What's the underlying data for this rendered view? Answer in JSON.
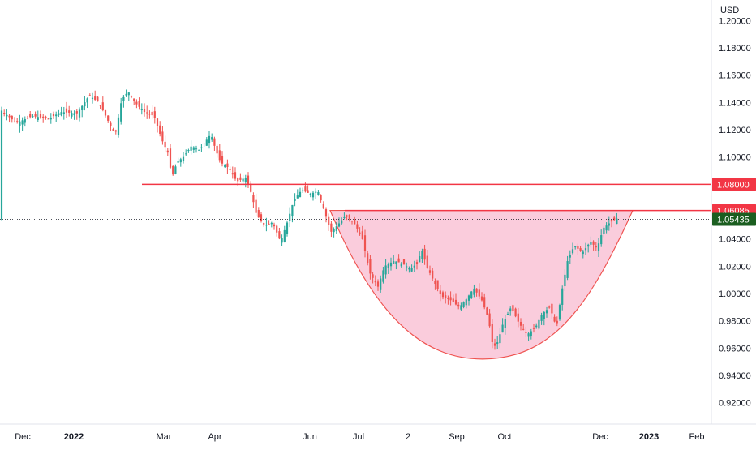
{
  "chart_data": {
    "type": "candlestick",
    "currency_label": "USD",
    "x_tick_labels": [
      "Dec",
      "2022",
      "Mar",
      "Apr",
      "Jun",
      "Jul",
      "2",
      "Sep",
      "Oct",
      "Dec",
      "2023",
      "Feb"
    ],
    "y_tick_labels": [
      "1.20000",
      "1.18000",
      "1.16000",
      "1.14000",
      "1.12000",
      "1.10000",
      "1.08000",
      "1.06000",
      "1.04000",
      "1.02000",
      "1.00000",
      "0.98000",
      "0.96000",
      "0.94000",
      "0.92000"
    ],
    "y_ticks": [
      1.2,
      1.18,
      1.16,
      1.14,
      1.12,
      1.1,
      1.08,
      1.06,
      1.04,
      1.02,
      1.0,
      0.98,
      0.96,
      0.94,
      0.92
    ],
    "ylim": [
      0.905,
      1.215
    ],
    "up_color": "#26a69a",
    "down_color": "#ef5350",
    "price_tags": [
      {
        "label": "1.08000",
        "value": 1.08,
        "color": "#f23645"
      },
      {
        "label": "1.06085",
        "value": 1.06085,
        "color": "#f23645"
      },
      {
        "label": "1.05435",
        "value": 1.05435,
        "color": "#1b5e20"
      }
    ],
    "resistance_lines": [
      {
        "value": 1.08,
        "color": "#f23645"
      },
      {
        "value": 1.06085,
        "color": "#f23645"
      }
    ],
    "current_price": 1.05435,
    "pattern": {
      "name": "cup",
      "rim": 1.06085,
      "bottom": 0.952,
      "fill": "#f8bbd0",
      "stroke": "#ef5350"
    },
    "price_path": [
      [
        0,
        1.135
      ],
      [
        20,
        1.125
      ],
      [
        40,
        1.13
      ],
      [
        60,
        1.128
      ],
      [
        75,
        1.133
      ],
      [
        95,
        1.132
      ],
      [
        110,
        1.145
      ],
      [
        122,
        1.14
      ],
      [
        132,
        1.128
      ],
      [
        142,
        1.116
      ],
      [
        150,
        1.142
      ],
      [
        158,
        1.148
      ],
      [
        166,
        1.14
      ],
      [
        178,
        1.133
      ],
      [
        190,
        1.13
      ],
      [
        200,
        1.112
      ],
      [
        207,
        1.103
      ],
      [
        212,
        1.085
      ],
      [
        218,
        1.096
      ],
      [
        226,
        1.1
      ],
      [
        236,
        1.108
      ],
      [
        246,
        1.105
      ],
      [
        254,
        1.112
      ],
      [
        260,
        1.117
      ],
      [
        266,
        1.105
      ],
      [
        272,
        1.096
      ],
      [
        282,
        1.092
      ],
      [
        292,
        1.082
      ],
      [
        303,
        1.085
      ],
      [
        310,
        1.073
      ],
      [
        316,
        1.058
      ],
      [
        326,
        1.05
      ],
      [
        336,
        1.052
      ],
      [
        346,
        1.038
      ],
      [
        354,
        1.052
      ],
      [
        362,
        1.068
      ],
      [
        372,
        1.076
      ],
      [
        382,
        1.073
      ],
      [
        392,
        1.075
      ],
      [
        400,
        1.06
      ],
      [
        408,
        1.045
      ],
      [
        416,
        1.05
      ],
      [
        426,
        1.057
      ],
      [
        436,
        1.052
      ],
      [
        446,
        1.042
      ],
      [
        456,
        1.015
      ],
      [
        466,
        1.005
      ],
      [
        474,
        1.02
      ],
      [
        486,
        1.024
      ],
      [
        496,
        1.022
      ],
      [
        506,
        1.018
      ],
      [
        514,
        1.022
      ],
      [
        520,
        1.032
      ],
      [
        526,
        1.02
      ],
      [
        534,
        1.01
      ],
      [
        544,
        0.998
      ],
      [
        556,
        0.995
      ],
      [
        566,
        0.99
      ],
      [
        574,
        0.995
      ],
      [
        584,
        1.004
      ],
      [
        594,
        0.995
      ],
      [
        602,
        0.982
      ],
      [
        608,
        0.96
      ],
      [
        614,
        0.965
      ],
      [
        620,
        0.978
      ],
      [
        630,
        0.99
      ],
      [
        640,
        0.978
      ],
      [
        650,
        0.97
      ],
      [
        660,
        0.975
      ],
      [
        668,
        0.985
      ],
      [
        678,
        0.99
      ],
      [
        686,
        0.975
      ],
      [
        692,
        1.0
      ],
      [
        700,
        1.025
      ],
      [
        708,
        1.035
      ],
      [
        718,
        1.03
      ],
      [
        728,
        1.038
      ],
      [
        736,
        1.033
      ],
      [
        744,
        1.048
      ],
      [
        752,
        1.052
      ],
      [
        760,
        1.055
      ],
      [
        763,
        1.05435
      ]
    ]
  }
}
